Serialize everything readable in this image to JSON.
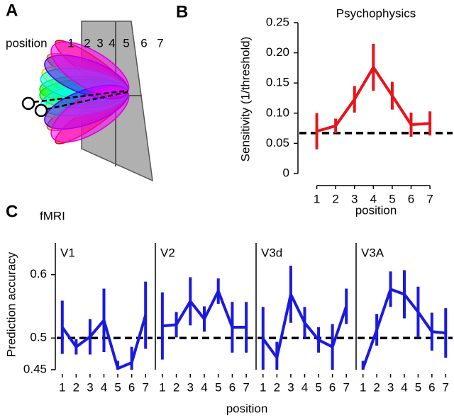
{
  "panel_a": {
    "label": "A",
    "axis_label": "position",
    "positions": [
      1,
      2,
      3,
      4,
      5,
      6,
      7
    ]
  },
  "chart_data": [
    {
      "type": "line",
      "panel_label": "B",
      "title": "Psychophysics",
      "ylabel": "Sensitivity (1/threshold)",
      "xlabel": "position",
      "x": [
        1,
        2,
        3,
        4,
        5,
        6,
        7
      ],
      "xlim": [
        0,
        8.2
      ],
      "xticks": [
        1,
        2,
        3,
        4,
        5,
        6,
        7
      ],
      "ylim": [
        0,
        0.25
      ],
      "yticks": [
        0,
        0.05,
        {
          "value": 0.1,
          "label": "0.10"
        },
        0.15,
        {
          "value": 0.2,
          "label": "0.20"
        },
        0.25
      ],
      "baseline": 0.067,
      "series": [
        {
          "color": "#e8141b",
          "values": [
            0.07,
            0.079,
            0.123,
            0.176,
            0.129,
            0.081,
            0.083
          ],
          "errors": [
            0.03,
            0.012,
            0.022,
            0.039,
            0.023,
            0.02,
            0.02
          ]
        }
      ]
    },
    {
      "type": "line",
      "panel_label": "C",
      "subtitle": "fMRI",
      "title": "V1",
      "ylabel": "Prediction accuracy",
      "xlabel": "position",
      "x": [
        1,
        2,
        3,
        4,
        5,
        6,
        7
      ],
      "xlim": [
        0.5,
        7.5
      ],
      "xticks": [
        1,
        2,
        3,
        4,
        5,
        6,
        7
      ],
      "ylim": [
        0.45,
        0.65
      ],
      "yticks": [
        0.45,
        0.5,
        0.6
      ],
      "baseline": 0.5,
      "series": [
        {
          "color": "#1a1adf",
          "values": [
            0.517,
            0.486,
            0.502,
            0.528,
            0.452,
            0.461,
            0.536
          ],
          "errors": [
            0.042,
            0.012,
            0.028,
            0.05,
            0.012,
            0.025,
            0.053
          ]
        }
      ]
    },
    {
      "type": "line",
      "title": "V2",
      "x": [
        1,
        2,
        3,
        4,
        5,
        6,
        7
      ],
      "xlim": [
        0.5,
        7.5
      ],
      "xticks": [
        1,
        2,
        3,
        4,
        5,
        6,
        7
      ],
      "ylim": [
        0.45,
        0.65
      ],
      "baseline": 0.5,
      "series": [
        {
          "color": "#1a1adf",
          "values": [
            0.519,
            0.521,
            0.558,
            0.53,
            0.574,
            0.517,
            0.517
          ],
          "errors": [
            0.053,
            0.02,
            0.038,
            0.02,
            0.02,
            0.04,
            0.04
          ]
        }
      ]
    },
    {
      "type": "line",
      "title": "V3d",
      "x": [
        1,
        2,
        3,
        4,
        5,
        6,
        7
      ],
      "xlim": [
        0.5,
        7.5
      ],
      "xticks": [
        1,
        2,
        3,
        4,
        5,
        6,
        7
      ],
      "ylim": [
        0.45,
        0.65
      ],
      "baseline": 0.5,
      "series": [
        {
          "color": "#1a1adf",
          "values": [
            0.499,
            0.469,
            0.569,
            0.524,
            0.497,
            0.486,
            0.55
          ],
          "errors": [
            0.05,
            0.025,
            0.045,
            0.025,
            0.02,
            0.036,
            0.028
          ]
        }
      ]
    },
    {
      "type": "line",
      "title": "V3A",
      "x": [
        1,
        2,
        3,
        4,
        5,
        6,
        7
      ],
      "xlim": [
        0.5,
        7.5
      ],
      "xticks": [
        1,
        2,
        3,
        4,
        5,
        6,
        7
      ],
      "ylim": [
        0.45,
        0.65
      ],
      "baseline": 0.5,
      "series": [
        {
          "color": "#1a1adf",
          "values": [
            0.452,
            0.513,
            0.577,
            0.569,
            0.541,
            0.51,
            0.508
          ],
          "errors": [
            0.012,
            0.025,
            0.028,
            0.038,
            0.04,
            0.03,
            0.039
          ]
        }
      ]
    }
  ]
}
